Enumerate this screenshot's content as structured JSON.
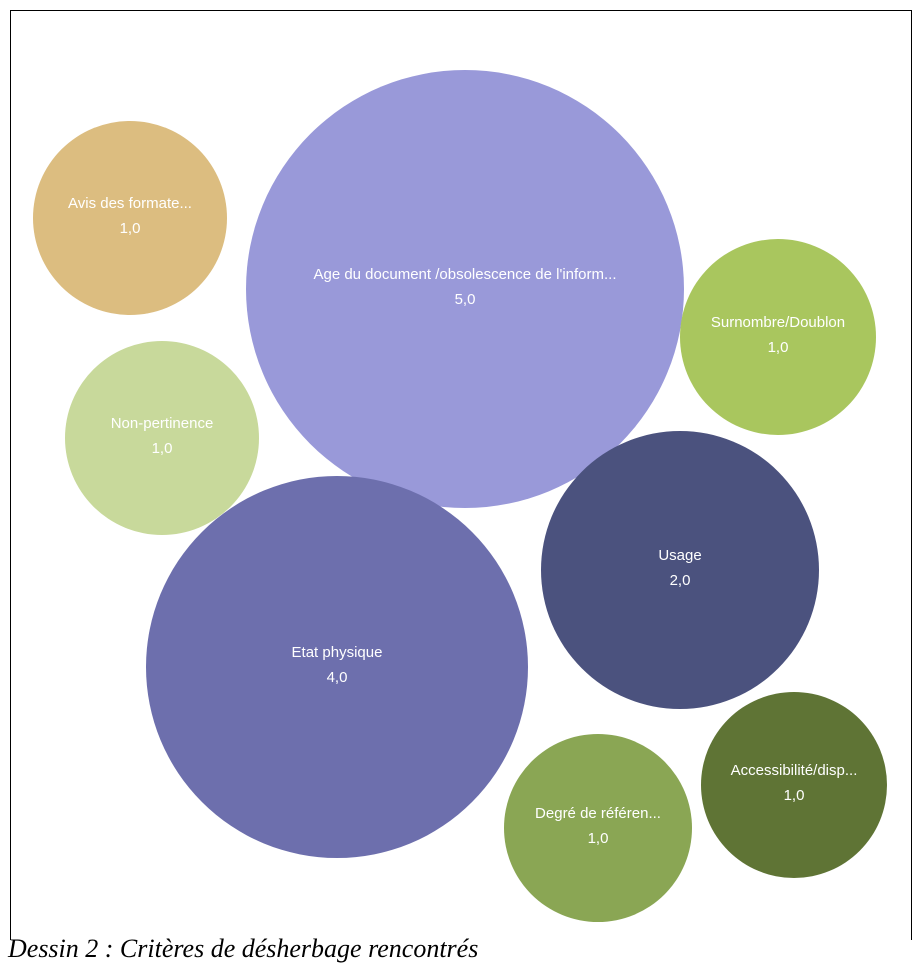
{
  "caption": "Dessin 2 : Critères de désherbage rencontrés",
  "chart_data": {
    "type": "bubble",
    "bubbles": [
      {
        "label": "Age du document /obsolescence de l'inform...",
        "value": "5,0",
        "color": "#9999d9"
      },
      {
        "label": "Etat physique",
        "value": "4,0",
        "color": "#6d6fad"
      },
      {
        "label": "Usage",
        "value": "2,0",
        "color": "#4b527e"
      },
      {
        "label": "Avis des formate...",
        "value": "1,0",
        "color": "#dcbd80"
      },
      {
        "label": "Non-pertinence",
        "value": "1,0",
        "color": "#c8d99b"
      },
      {
        "label": "Surnombre/Doublon",
        "value": "1,0",
        "color": "#a9c65e"
      },
      {
        "label": "Degré de référen...",
        "value": "1,0",
        "color": "#8aa654"
      },
      {
        "label": "Accessibilité/disp...",
        "value": "1,0",
        "color": "#5f7435"
      }
    ]
  }
}
